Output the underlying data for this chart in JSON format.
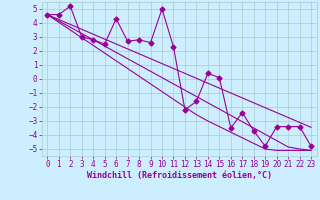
{
  "xlabel": "Windchill (Refroidissement éolien,°C)",
  "bg_color": "#cceeff",
  "line_color": "#990099",
  "x_data": [
    0,
    1,
    2,
    3,
    4,
    5,
    6,
    7,
    8,
    9,
    10,
    11,
    12,
    13,
    14,
    15,
    16,
    17,
    18,
    19,
    20,
    21,
    22,
    23
  ],
  "y_scatter": [
    4.6,
    4.6,
    5.2,
    3.0,
    2.8,
    2.5,
    4.3,
    2.7,
    2.8,
    2.6,
    5.0,
    2.3,
    -2.2,
    -1.6,
    0.4,
    0.1,
    -3.5,
    -2.4,
    -3.7,
    -4.8,
    -3.4,
    -3.4,
    -3.4,
    -4.8
  ],
  "y_line1": [
    4.6,
    4.15,
    3.7,
    3.25,
    2.8,
    2.35,
    1.9,
    1.45,
    1.0,
    0.55,
    0.1,
    -0.35,
    -0.8,
    -1.25,
    -1.7,
    -2.15,
    -2.6,
    -3.05,
    -3.5,
    -3.95,
    -4.4,
    -4.85,
    -5.0,
    -5.1
  ],
  "y_line2": [
    4.6,
    4.25,
    3.9,
    3.55,
    3.2,
    2.85,
    2.5,
    2.15,
    1.8,
    1.45,
    1.1,
    0.75,
    0.4,
    0.05,
    -0.3,
    -0.65,
    -1.0,
    -1.35,
    -1.7,
    -2.05,
    -2.4,
    -2.75,
    -3.1,
    -3.45
  ],
  "y_line3": [
    4.6,
    4.05,
    3.5,
    2.95,
    2.4,
    1.85,
    1.3,
    0.75,
    0.2,
    -0.35,
    -0.9,
    -1.45,
    -2.0,
    -2.55,
    -3.0,
    -3.4,
    -3.8,
    -4.2,
    -4.6,
    -5.0,
    -5.1,
    -5.1,
    -5.1,
    -5.1
  ],
  "ylim": [
    -5.5,
    5.5
  ],
  "xlim": [
    -0.5,
    23.5
  ],
  "yticks": [
    -5,
    -4,
    -3,
    -2,
    -1,
    0,
    1,
    2,
    3,
    4,
    5
  ],
  "xticks": [
    0,
    1,
    2,
    3,
    4,
    5,
    6,
    7,
    8,
    9,
    10,
    11,
    12,
    13,
    14,
    15,
    16,
    17,
    18,
    19,
    20,
    21,
    22,
    23
  ],
  "grid_color": "#aacccc",
  "marker": "D",
  "markersize": 2.5,
  "linewidth": 0.8,
  "tick_fontsize": 5.5,
  "xlabel_fontsize": 6.0
}
